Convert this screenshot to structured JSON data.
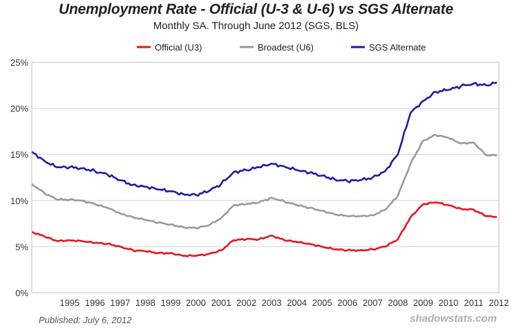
{
  "chart_data": {
    "type": "line",
    "title": "Unemployment Rate - Official (U-3 & U-6) vs SGS Alternate",
    "subtitle": "Monthly SA. Through June 2012  (SGS, BLS)",
    "xlabel": "",
    "ylabel": "",
    "xlim": [
      1994.0,
      2012.5
    ],
    "ylim": [
      0,
      25
    ],
    "yticks": [
      0,
      5,
      10,
      15,
      20,
      25
    ],
    "ytick_labels": [
      "0%",
      "5%",
      "10%",
      "15%",
      "20%",
      "25%"
    ],
    "xtick_labels": [
      "1995",
      "1996",
      "1997",
      "1998",
      "1999",
      "2000",
      "2001",
      "2002",
      "2003",
      "2004",
      "2005",
      "2006",
      "2007",
      "2008",
      "2009",
      "2010",
      "2011",
      "2012"
    ],
    "grid": "horizontal",
    "legend_position": "top-center",
    "series": [
      {
        "name": "Official (U3)",
        "color": "#e8141b",
        "x": [
          1994.0,
          1994.5,
          1995.0,
          1995.5,
          1996.0,
          1996.5,
          1997.0,
          1997.5,
          1998.0,
          1998.5,
          1999.0,
          1999.5,
          2000.0,
          2000.5,
          2001.0,
          2001.5,
          2002.0,
          2002.5,
          2003.0,
          2003.5,
          2004.0,
          2004.5,
          2005.0,
          2005.5,
          2006.0,
          2006.5,
          2007.0,
          2007.5,
          2008.0,
          2008.5,
          2009.0,
          2009.5,
          2010.0,
          2010.5,
          2011.0,
          2011.5,
          2012.0,
          2012.42
        ],
        "values": [
          6.6,
          6.1,
          5.6,
          5.7,
          5.6,
          5.4,
          5.3,
          5.0,
          4.6,
          4.5,
          4.3,
          4.3,
          4.0,
          4.0,
          4.2,
          4.6,
          5.7,
          5.8,
          5.8,
          6.2,
          5.7,
          5.5,
          5.3,
          5.0,
          4.7,
          4.6,
          4.6,
          4.7,
          5.0,
          5.8,
          8.2,
          9.6,
          9.8,
          9.5,
          9.1,
          9.0,
          8.3,
          8.2
        ]
      },
      {
        "name": "Broadest (U6)",
        "color": "#9a9a9a",
        "x": [
          1994.0,
          1994.5,
          1995.0,
          1995.5,
          1996.0,
          1996.5,
          1997.0,
          1997.5,
          1998.0,
          1998.5,
          1999.0,
          1999.5,
          2000.0,
          2000.5,
          2001.0,
          2001.5,
          2002.0,
          2002.5,
          2003.0,
          2003.5,
          2004.0,
          2004.5,
          2005.0,
          2005.5,
          2006.0,
          2006.5,
          2007.0,
          2007.5,
          2008.0,
          2008.5,
          2009.0,
          2009.5,
          2010.0,
          2010.5,
          2011.0,
          2011.5,
          2012.0,
          2012.42
        ],
        "values": [
          11.8,
          10.8,
          10.1,
          10.1,
          10.0,
          9.6,
          9.2,
          8.6,
          8.2,
          7.9,
          7.6,
          7.4,
          7.1,
          7.0,
          7.3,
          8.1,
          9.5,
          9.6,
          9.8,
          10.3,
          9.9,
          9.5,
          9.2,
          8.9,
          8.5,
          8.3,
          8.3,
          8.4,
          9.0,
          10.5,
          14.0,
          16.5,
          17.1,
          16.8,
          16.2,
          16.3,
          14.9,
          14.9
        ]
      },
      {
        "name": "SGS Alternate",
        "color": "#1c1ca0",
        "x": [
          1994.0,
          1994.5,
          1995.0,
          1995.5,
          1996.0,
          1996.5,
          1997.0,
          1997.5,
          1998.0,
          1998.5,
          1999.0,
          1999.5,
          2000.0,
          2000.5,
          2001.0,
          2001.5,
          2002.0,
          2002.5,
          2003.0,
          2003.5,
          2004.0,
          2004.5,
          2005.0,
          2005.5,
          2006.0,
          2006.5,
          2007.0,
          2007.5,
          2008.0,
          2008.5,
          2009.0,
          2009.5,
          2010.0,
          2010.5,
          2011.0,
          2011.5,
          2012.0,
          2012.42
        ],
        "values": [
          15.3,
          14.3,
          13.6,
          13.6,
          13.5,
          13.2,
          12.8,
          12.2,
          11.7,
          11.5,
          11.2,
          11.0,
          10.7,
          10.6,
          11.0,
          11.8,
          13.1,
          13.3,
          13.6,
          14.0,
          13.7,
          13.3,
          13.0,
          12.7,
          12.3,
          12.1,
          12.2,
          12.5,
          13.2,
          15.0,
          19.5,
          20.8,
          21.8,
          22.0,
          22.4,
          22.7,
          22.5,
          22.8
        ]
      }
    ]
  },
  "footer": {
    "published": "Published: July 6, 2012",
    "watermark": "shadowstats.com"
  }
}
